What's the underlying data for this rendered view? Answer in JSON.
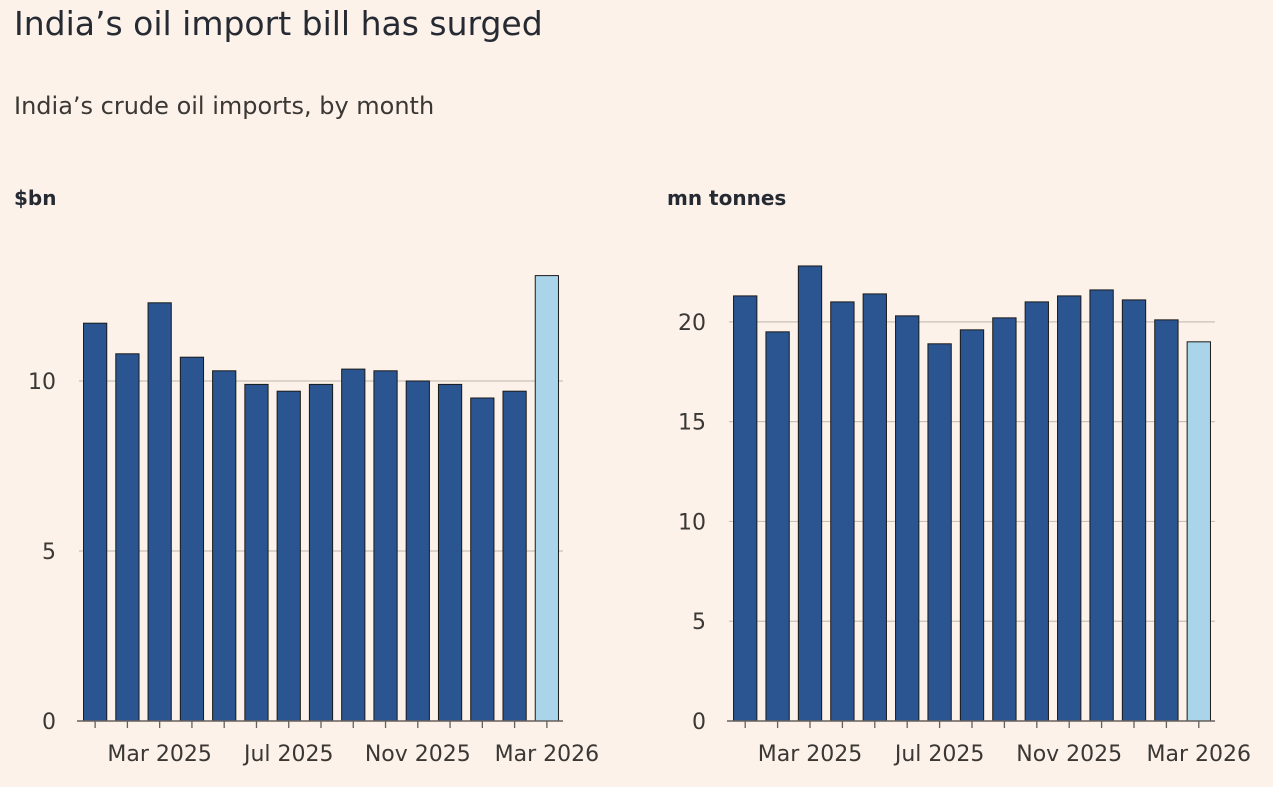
{
  "title": "India’s oil import bill has surged",
  "subtitle": "India’s crude oil imports, by month",
  "colors": {
    "background": "#fcf2e9",
    "bar": "#2a5591",
    "bar_highlight": "#a9d4ea",
    "bar_outline": "#1a1a1a",
    "grid": "#c9c1b9",
    "axis": "#66605c"
  },
  "chart_data": [
    {
      "type": "bar",
      "title": "",
      "ylabel": "$bn",
      "xlabel": "",
      "ylim": [
        0,
        13.5
      ],
      "yticks": [
        0,
        5,
        10
      ],
      "categories": [
        "Jan 2025",
        "Feb 2025",
        "Mar 2025",
        "Apr 2025",
        "May 2025",
        "Jun 2025",
        "Jul 2025",
        "Aug 2025",
        "Sep 2025",
        "Oct 2025",
        "Nov 2025",
        "Dec 2025",
        "Jan 2026",
        "Feb 2026",
        "Mar 2026"
      ],
      "x_tick_labels": [
        {
          "category_index": 2,
          "label": "Mar 2025"
        },
        {
          "category_index": 6,
          "label": "Jul 2025"
        },
        {
          "category_index": 10,
          "label": "Nov 2025"
        },
        {
          "category_index": 14,
          "label": "Mar 2026"
        }
      ],
      "values": [
        11.7,
        10.8,
        12.3,
        10.7,
        10.3,
        9.9,
        9.7,
        9.9,
        10.35,
        10.3,
        10.0,
        9.9,
        9.5,
        9.7,
        13.1
      ],
      "highlight_last": true,
      "grid": true
    },
    {
      "type": "bar",
      "title": "",
      "ylabel": "mn tonnes",
      "xlabel": "",
      "ylim": [
        0,
        23.5
      ],
      "yticks": [
        0,
        5,
        10,
        15,
        20
      ],
      "categories": [
        "Jan 2025",
        "Feb 2025",
        "Mar 2025",
        "Apr 2025",
        "May 2025",
        "Jun 2025",
        "Jul 2025",
        "Aug 2025",
        "Sep 2025",
        "Oct 2025",
        "Nov 2025",
        "Dec 2025",
        "Jan 2026",
        "Feb 2026",
        "Mar 2026"
      ],
      "x_tick_labels": [
        {
          "category_index": 2,
          "label": "Mar 2025"
        },
        {
          "category_index": 6,
          "label": "Jul 2025"
        },
        {
          "category_index": 10,
          "label": "Nov 2025"
        },
        {
          "category_index": 14,
          "label": "Mar 2026"
        }
      ],
      "values": [
        21.3,
        19.5,
        22.8,
        21.0,
        21.4,
        20.3,
        18.9,
        19.6,
        20.2,
        21.0,
        21.3,
        21.6,
        21.1,
        20.1,
        19.0
      ],
      "highlight_last": true,
      "grid": true
    }
  ]
}
